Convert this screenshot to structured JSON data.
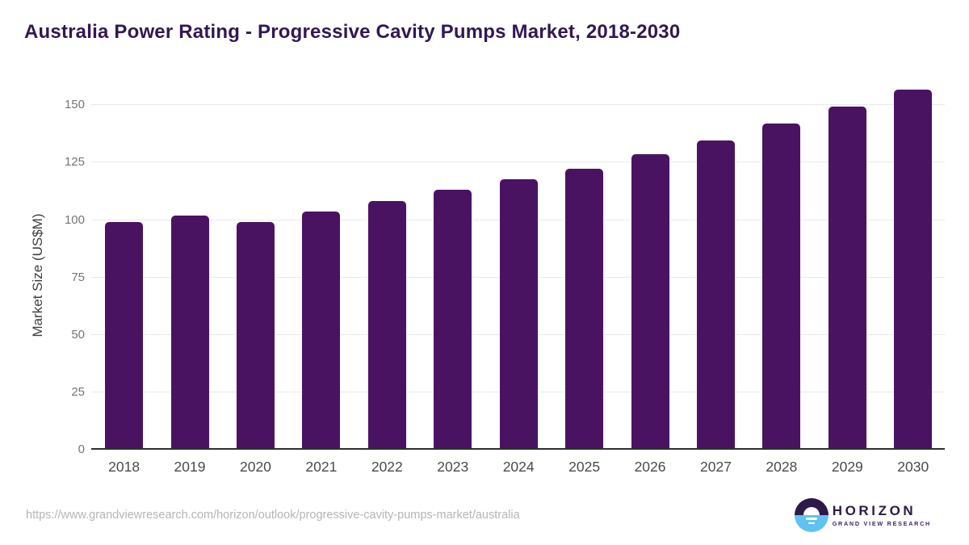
{
  "chart_data": {
    "type": "bar",
    "title": "Australia Power Rating - Progressive Cavity Pumps Market, 2018-2030",
    "categories": [
      "2018",
      "2019",
      "2020",
      "2021",
      "2022",
      "2023",
      "2024",
      "2025",
      "2026",
      "2027",
      "2028",
      "2029",
      "2030"
    ],
    "values": [
      99.0,
      102.1,
      99.3,
      103.6,
      108.3,
      113.1,
      117.7,
      122.2,
      128.6,
      134.8,
      142.1,
      149.4,
      156.7
    ],
    "xlabel": "",
    "ylabel": "Market Size (US$M)",
    "ylim": [
      0,
      160
    ],
    "yticks": [
      0,
      25,
      50,
      75,
      100,
      125,
      150
    ],
    "grid": "horizontal",
    "legend": "none",
    "bar_color": "#4a1361"
  },
  "colors": {
    "title_text": "#321853",
    "bar": "#4a1361",
    "gridline": "#e9e9e9",
    "axis_line": "#2f2f2f",
    "y_tick_text": "#757575",
    "x_tick_text": "#4a4a4a",
    "url_text": "#b5b5b5",
    "logo_purple": "#2e1a47",
    "logo_blue": "#5fc2ef"
  },
  "footer": {
    "source_url": "https://www.grandviewresearch.com/horizon/outlook/progressive-cavity-pumps-market/australia",
    "logo": {
      "name": "HORIZON",
      "tagline": "GRAND VIEW RESEARCH"
    }
  }
}
